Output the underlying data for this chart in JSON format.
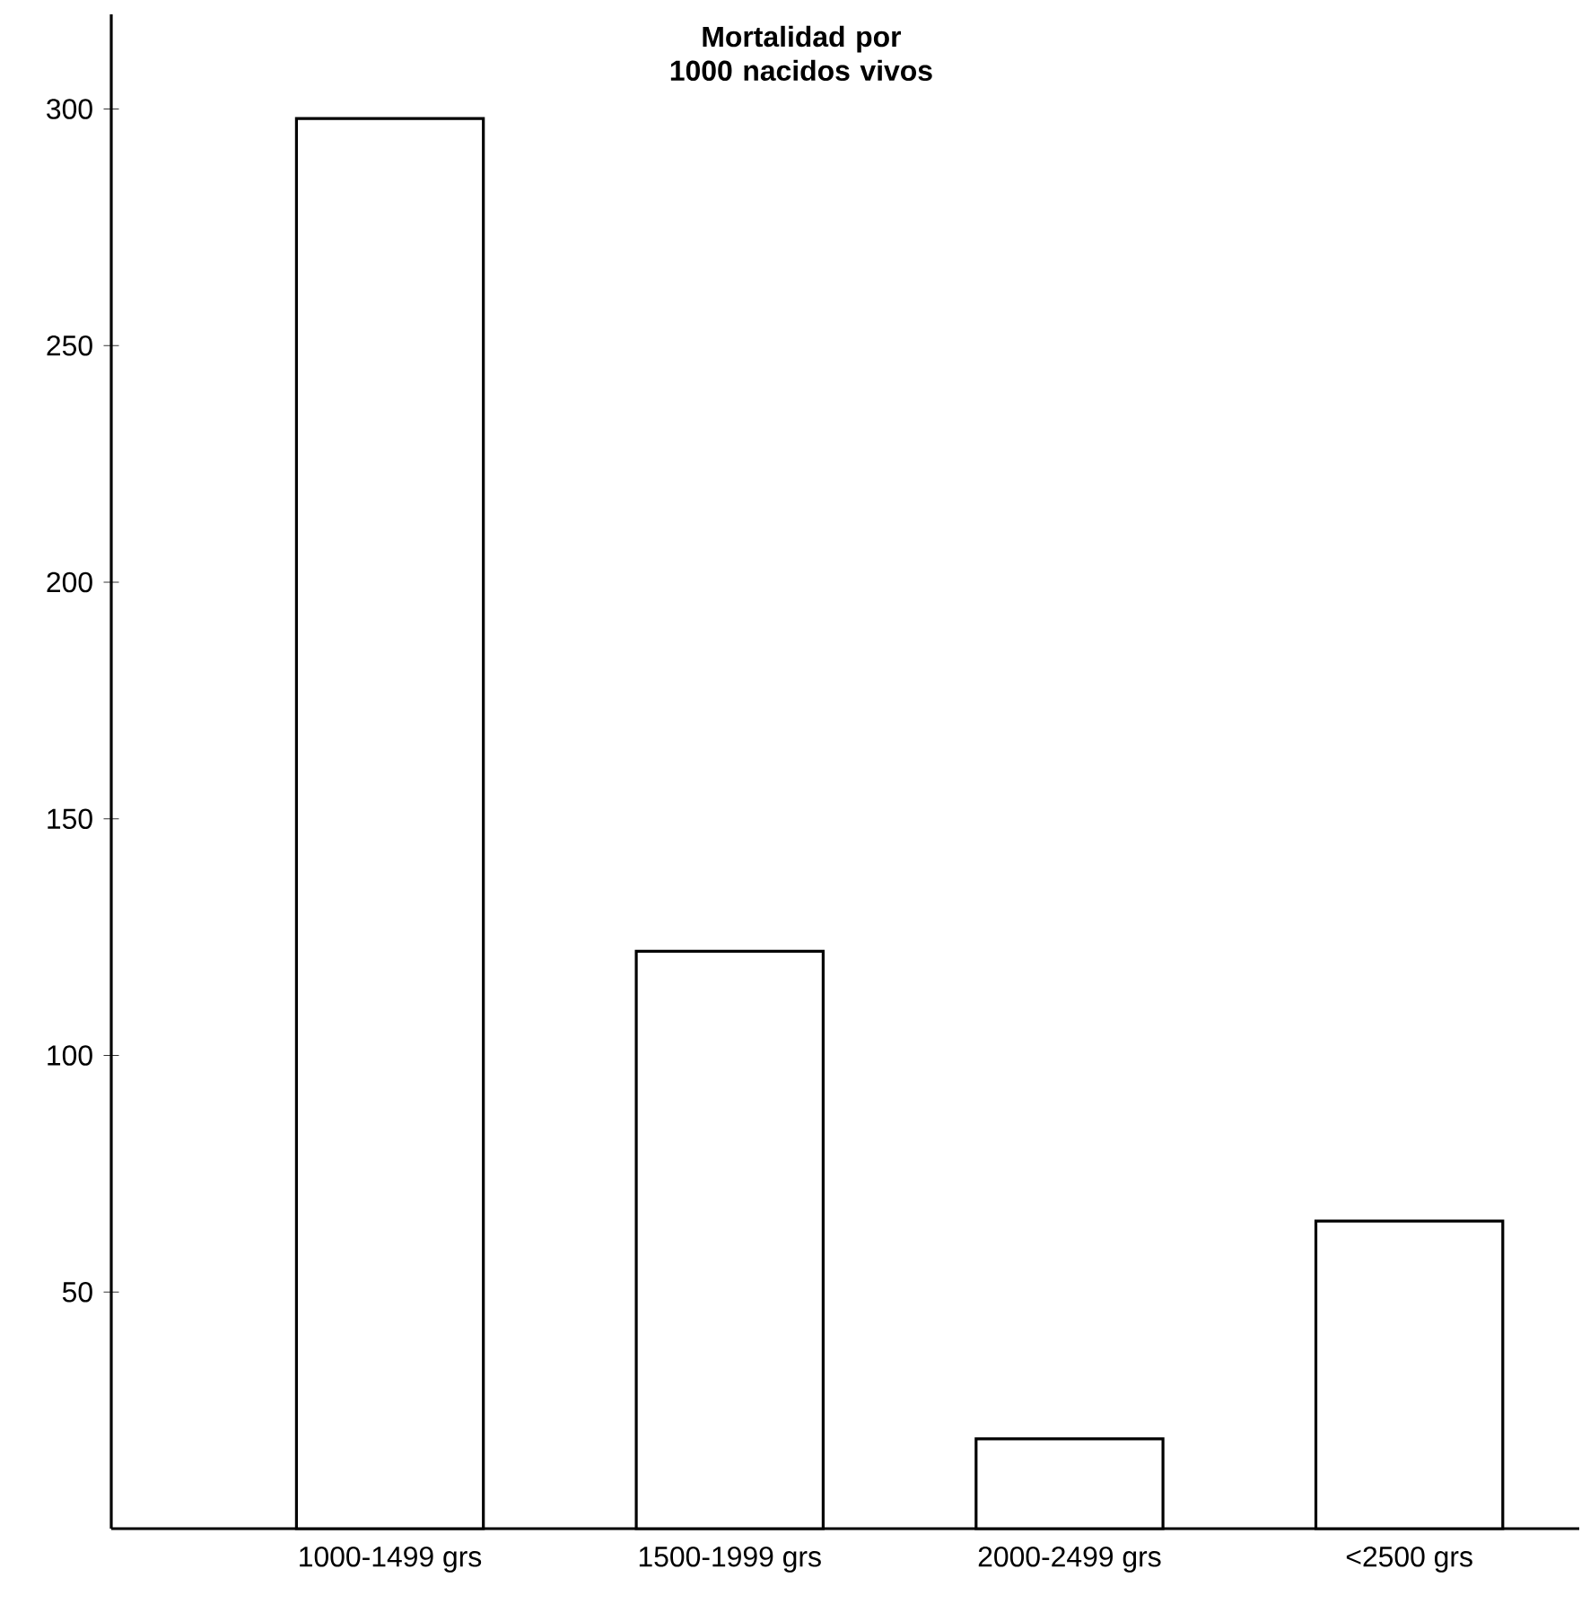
{
  "chart_data": {
    "type": "bar",
    "title": "Mortalidad por 1000 nacidos vivos",
    "categories": [
      "1000-1499 grs",
      "1500-1999 grs",
      "2000-2499 grs",
      "<2500 grs"
    ],
    "values": [
      298,
      122,
      19,
      65
    ],
    "color": "#ffffff",
    "ylim": [
      0,
      320
    ],
    "yticks": [
      50,
      100,
      150,
      200,
      250,
      300
    ],
    "grid": false
  }
}
